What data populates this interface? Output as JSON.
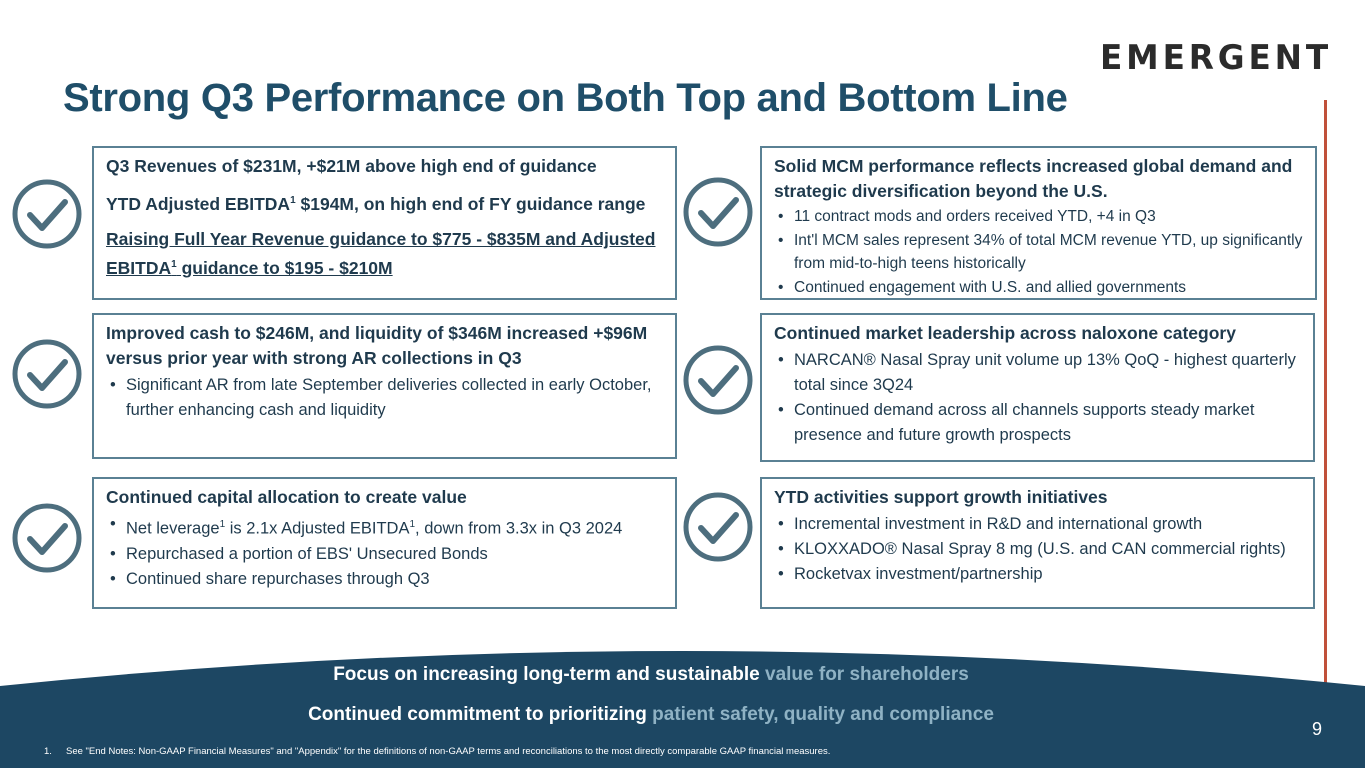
{
  "logo": {
    "text": "EMERGENT"
  },
  "title": "Strong Q3 Performance on Both Top and Bottom Line",
  "boxes": {
    "b1": {
      "line1": "Q3 Revenues of $231M, +$21M above high end of guidance",
      "line2a": "YTD Adjusted EBITDA",
      "line2sup": "1",
      "line2b": " $194M, on high end of FY guidance range",
      "line3a": "Raising Full Year Revenue guidance to $775 - $835M and Adjusted EBITDA",
      "line3sup": "1",
      "line3b": " guidance to $195 - $210M"
    },
    "b2": {
      "heading": "Solid MCM performance reflects increased global demand and strategic diversification beyond the U.S.",
      "bullets": [
        "11 contract mods and orders received YTD, +4 in Q3",
        "Int'l MCM sales represent 34% of total MCM revenue YTD, up significantly from mid-to-high teens historically",
        "Continued engagement with U.S. and allied governments"
      ]
    },
    "b3": {
      "heading": "Improved cash to $246M, and liquidity of $346M increased +$96M versus prior year with strong AR collections in Q3",
      "bullets": [
        "Significant AR from late September deliveries collected in early October, further enhancing cash and liquidity"
      ]
    },
    "b4": {
      "heading": "Continued market leadership across naloxone category",
      "bullets": [
        "NARCAN® Nasal Spray unit volume up 13% QoQ - highest quarterly total since 3Q24",
        "Continued demand across all channels supports steady market presence and future growth prospects"
      ]
    },
    "b5": {
      "heading": "Continued capital allocation to create value",
      "bullet1a": "Net leverage",
      "bullet1sup1": "1",
      "bullet1b": " is 2.1x Adjusted EBITDA",
      "bullet1sup2": "1",
      "bullet1c": ", down from 3.3x in Q3 2024",
      "bullets": [
        "Repurchased a portion of EBS' Unsecured Bonds",
        "Continued share repurchases through Q3"
      ]
    },
    "b6": {
      "heading": "YTD activities support growth initiatives",
      "bullets": [
        "Incremental investment in R&D and international growth",
        "KLOXXADO® Nasal Spray 8 mg (U.S. and CAN commercial rights)",
        "Rocketvax investment/partnership"
      ]
    }
  },
  "band": {
    "line1_a": "Focus on increasing long-term and sustainable ",
    "line1_b": "value for shareholders",
    "line2_a": "Continued commitment to prioritizing ",
    "line2_b": "patient safety, quality and compliance"
  },
  "page_number": "9",
  "footnote": {
    "num": "1.",
    "text": "See \"End Notes: Non-GAAP Financial Measures\" and \"Appendix\" for the definitions of non-GAAP terms and reconciliations to the most directly comparable GAAP financial measures."
  },
  "colors": {
    "title": "#1f4e69",
    "band": "#1d4763",
    "highlight": "#8fb2c4",
    "accent_line": "#c0503a",
    "check": "#4d6e7e"
  },
  "icons": [
    "check-circle-icon"
  ]
}
